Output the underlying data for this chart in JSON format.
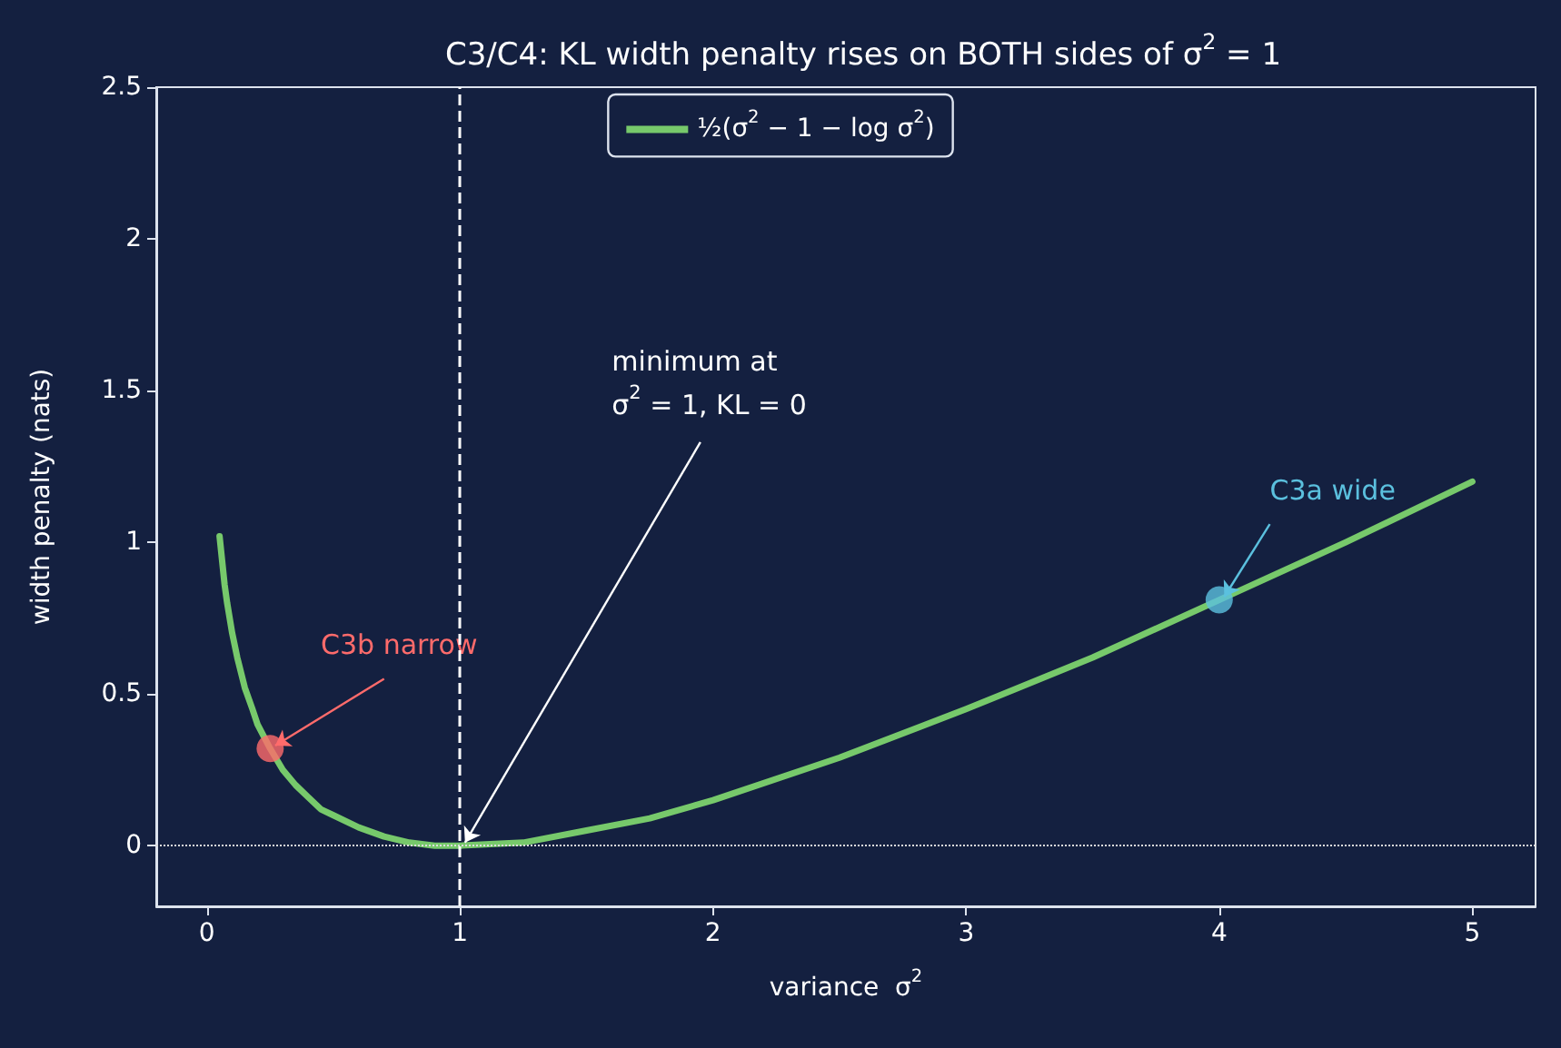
{
  "chart_data": {
    "type": "line",
    "title": "C3/C4: KL width penalty rises on BOTH sides of σ$^{2}$ = 1",
    "xlabel": "variance  σ$^{2}$",
    "ylabel": "width penalty (nats)",
    "series": [
      {
        "name": "½(σ$^{2}$ − 1 − log σ$^{2}$)",
        "color": "#77c96b",
        "marker": "none",
        "line_style": "solid",
        "x": [
          0.05,
          0.06,
          0.07,
          0.08,
          0.1,
          0.12,
          0.15,
          0.18,
          0.2,
          0.25,
          0.3,
          0.35,
          0.4,
          0.45,
          0.5,
          0.6,
          0.7,
          0.8,
          0.9,
          1,
          1.25,
          1.5,
          1.75,
          2,
          2.5,
          3,
          3.5,
          4,
          4.5,
          5
        ],
        "values": [
          1.02,
          0.94,
          0.86,
          0.8,
          0.7,
          0.62,
          0.52,
          0.45,
          0.4,
          0.32,
          0.25,
          0.2,
          0.16,
          0.12,
          0.1,
          0.06,
          0.03,
          0.01,
          0.0,
          0,
          0.01,
          0.05,
          0.09,
          0.15,
          0.29,
          0.45,
          0.62,
          0.81,
          1.0,
          1.2
        ]
      },
      {
        "type": "scatter",
        "color": "#ff6b6b",
        "marker": "circle",
        "x": [
          0.25
        ],
        "values": [
          0.32
        ]
      },
      {
        "type": "scatter",
        "color": "#5bc0de",
        "marker": "circle",
        "x": [
          4
        ],
        "values": [
          0.81
        ]
      }
    ],
    "annotations": [
      {
        "text": "C3b narrow",
        "x": 0.25,
        "y": 0.32
      },
      {
        "text": "C3a wide",
        "x": 4,
        "y": 0.81
      },
      {
        "text": "minimum at\nσ$^{2}$ = 1, KL = 0",
        "x": 1,
        "y": 0
      }
    ],
    "ref_lines": [
      {
        "axis": "x",
        "value": 1,
        "color": "#ffffff",
        "line_style": "dashed"
      },
      {
        "axis": "y",
        "value": 0,
        "color": "#dddddd",
        "line_style": "dotted"
      }
    ],
    "xlim": [
      -0.2,
      5.25
    ],
    "xticks": [
      0,
      1,
      2,
      3,
      4,
      5
    ],
    "ylim": [
      -0.2,
      2.5
    ],
    "yticks": [
      0,
      0.5,
      1,
      1.5,
      2,
      2.5
    ],
    "grid": false,
    "legend": "top"
  }
}
